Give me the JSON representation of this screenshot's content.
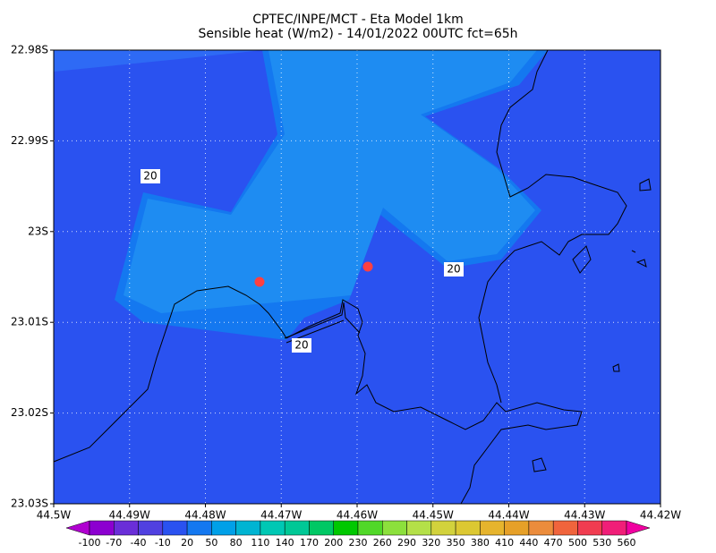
{
  "header": {
    "title_line1": "CPTEC/INPE/MCT -  Eta Model 1km",
    "title_line2": "Sensible heat (W/m2) - 14/01/2022 00UTC fct=65h"
  },
  "map": {
    "yticks": [
      "22.98S",
      "22.99S",
      "23S",
      "23.01S",
      "23.02S",
      "23.03S"
    ],
    "xticks": [
      "44.5W",
      "44.49W",
      "44.48W",
      "44.47W",
      "44.46W",
      "44.45W",
      "44.44W",
      "44.43W",
      "44.42W"
    ],
    "contour_labels": [
      "20",
      "20",
      "20"
    ]
  },
  "colorbar": {
    "labels": [
      "-100",
      "-70",
      "-40",
      "-10",
      "20",
      "50",
      "80",
      "110",
      "140",
      "170",
      "200",
      "230",
      "260",
      "290",
      "320",
      "350",
      "380",
      "410",
      "440",
      "470",
      "500",
      "530",
      "560"
    ],
    "colors": [
      "#b000d0",
      "#8c00d0",
      "#6a2ed8",
      "#5040e0",
      "#2a52f0",
      "#1478f0",
      "#00a0e8",
      "#00b4d2",
      "#00c8b4",
      "#00c896",
      "#00c864",
      "#00c800",
      "#50d828",
      "#8ce03c",
      "#b4e048",
      "#d2d23c",
      "#dcc832",
      "#e6b42d",
      "#e6a028",
      "#eb8c3c",
      "#f0643c",
      "#f03c50",
      "#f01e78",
      "#f000a0"
    ]
  }
}
